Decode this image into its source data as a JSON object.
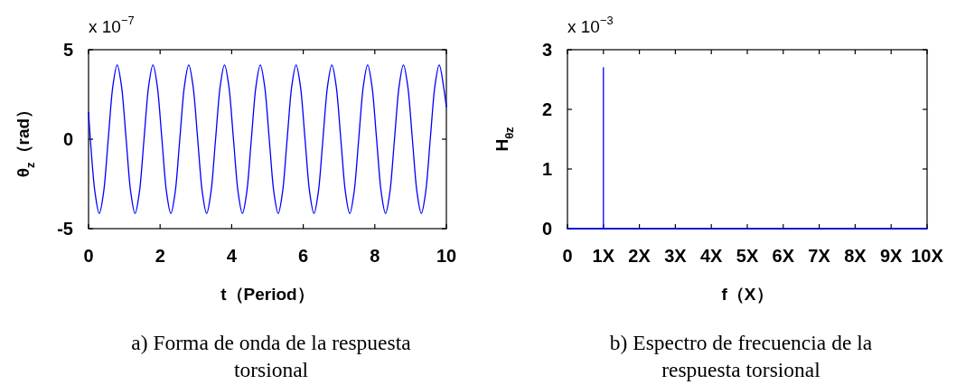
{
  "chart_data": [
    {
      "type": "line",
      "title": "a) Forma de onda de la respuesta torsional",
      "xlabel": "t（Period）",
      "ylabel": "θ$_{z}$（rad）",
      "annotations": [
        "x 10$^{−7}$"
      ],
      "x": [
        0,
        0.05,
        0.175,
        0.3,
        0.425,
        0.55,
        0.675,
        0.8,
        0.925,
        1.05,
        1.175,
        1.3,
        1.425,
        1.55,
        1.675,
        1.8,
        1.925,
        2.05,
        2.175,
        2.3,
        2.425,
        2.55,
        2.675,
        2.8,
        2.925,
        3.05,
        3.175,
        3.3,
        3.425,
        3.55,
        3.675,
        3.8,
        3.925,
        4.05,
        4.175,
        4.3,
        4.425,
        4.55,
        4.675,
        4.8,
        4.925,
        5.05,
        5.175,
        5.3,
        5.425,
        5.55,
        5.675,
        5.8,
        5.925,
        6.05,
        6.175,
        6.3,
        6.425,
        6.55,
        6.675,
        6.8,
        6.925,
        7.05,
        7.175,
        7.3,
        7.425,
        7.55,
        7.675,
        7.8,
        7.925,
        8.05,
        8.175,
        8.3,
        8.425,
        8.55,
        8.675,
        8.8,
        8.925,
        9.05,
        9.175,
        9.3,
        9.425,
        9.55,
        9.675,
        9.8,
        9.925,
        10
      ],
      "series": [
        {
          "color": "#0000ff",
          "values": [
            1.5,
            0,
            -2.9,
            -4.15,
            -2.9,
            0,
            2.9,
            4.15,
            2.9,
            0,
            -2.9,
            -4.15,
            -2.9,
            0,
            2.9,
            4.15,
            2.9,
            0,
            -2.9,
            -4.15,
            -2.9,
            0,
            2.9,
            4.15,
            2.9,
            0,
            -2.9,
            -4.15,
            -2.9,
            0,
            2.9,
            4.15,
            2.9,
            0,
            -2.9,
            -4.15,
            -2.9,
            0,
            2.9,
            4.15,
            2.9,
            0,
            -2.9,
            -4.15,
            -2.9,
            0,
            2.9,
            4.15,
            2.9,
            0,
            -2.9,
            -4.15,
            -2.9,
            0,
            2.9,
            4.15,
            2.9,
            0,
            -2.9,
            -4.15,
            -2.9,
            0,
            2.9,
            4.15,
            2.9,
            0,
            -2.9,
            -4.15,
            -2.9,
            0,
            2.9,
            4.15,
            2.9,
            0,
            -2.9,
            -4.15,
            -2.9,
            0,
            2.9,
            4.15,
            2.9,
            1.8
          ]
        }
      ],
      "xlim": [
        0,
        10
      ],
      "xticks": [
        0,
        2,
        4,
        6,
        8,
        10
      ],
      "ylim": [
        -5,
        5
      ],
      "yticks": [
        -5,
        0,
        5
      ]
    },
    {
      "type": "line",
      "title": "b) Espectro de frecuencia de la respuesta torsional",
      "xlabel": "f（X）",
      "ylabel": "H$_{θz}$",
      "annotations": [
        "x 10$^{−3}$"
      ],
      "x": [
        0,
        1,
        1,
        1,
        10
      ],
      "series": [
        {
          "color": "#0000ff",
          "values": [
            0,
            0,
            2.7,
            0,
            0
          ]
        }
      ],
      "xlim": [
        0,
        10
      ],
      "xticks": [
        0,
        {
          "value": 1,
          "label": "1X"
        },
        {
          "value": 2,
          "label": "2X"
        },
        {
          "value": 3,
          "label": "3X"
        },
        {
          "value": 4,
          "label": "4X"
        },
        {
          "value": 5,
          "label": "5X"
        },
        {
          "value": 6,
          "label": "6X"
        },
        {
          "value": 7,
          "label": "7X"
        },
        {
          "value": 8,
          "label": "8X"
        },
        {
          "value": 9,
          "label": "9X"
        },
        {
          "value": 10,
          "label": "10X"
        }
      ],
      "ylim": [
        0,
        3
      ],
      "yticks": [
        0,
        1,
        2,
        3
      ]
    }
  ]
}
